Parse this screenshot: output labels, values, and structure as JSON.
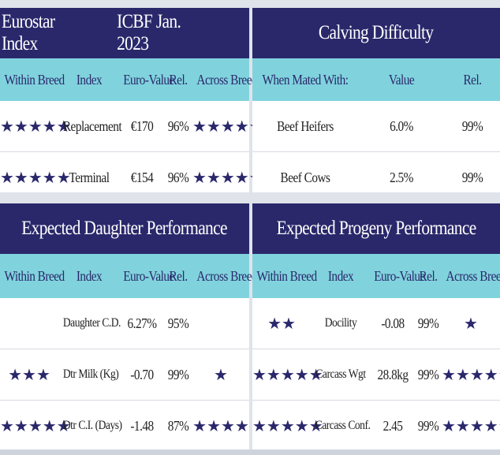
{
  "eurostar": {
    "title": "Eurostar Index",
    "subtitle": "ICBF Jan. 2023",
    "headers": [
      "Within Breed",
      "Index",
      "Euro-Value",
      "Rel.",
      "Across Breed"
    ],
    "rows": [
      {
        "within": "★★★★★",
        "index": "Replacement",
        "value": "€170",
        "rel": "96%",
        "across": "★★★★★"
      },
      {
        "within": "★★★★★",
        "index": "Terminal",
        "value": "€154",
        "rel": "96%",
        "across": "★★★★★"
      }
    ]
  },
  "calving": {
    "title": "Calving Difficulty",
    "headers": [
      "When Mated With:",
      "Value",
      "Rel."
    ],
    "rows": [
      {
        "mated": "Beef Heifers",
        "value": "6.0%",
        "rel": "99%"
      },
      {
        "mated": "Beef Cows",
        "value": "2.5%",
        "rel": "99%"
      }
    ]
  },
  "daughter": {
    "title": "Expected Daughter Performance",
    "headers": [
      "Within Breed",
      "Index",
      "Euro-Value",
      "Rel.",
      "Across Breed"
    ],
    "rows": [
      {
        "within": "",
        "index": "Daughter C.D.",
        "value": "6.27%",
        "rel": "95%",
        "across": ""
      },
      {
        "within": "★★★",
        "index": "Dtr Milk (Kg)",
        "value": "-0.70",
        "rel": "99%",
        "across": "★"
      },
      {
        "within": "★★★★★",
        "index": "Dtr C.I. (Days)",
        "value": "-1.48",
        "rel": "87%",
        "across": "★★★★"
      }
    ]
  },
  "progeny": {
    "title": "Expected Progeny Performance",
    "headers": [
      "Within Breed",
      "Index",
      "Euro-Value",
      "Rel.",
      "Across Breed"
    ],
    "rows": [
      {
        "within": "★★",
        "index": "Docility",
        "value": "-0.08",
        "rel": "99%",
        "across": "★"
      },
      {
        "within": "★★★★★",
        "index": "Carcass Wgt",
        "value": "28.8kg",
        "rel": "99%",
        "across": "★★★★★"
      },
      {
        "within": "★★★★★",
        "index": "Carcass Conf.",
        "value": "2.45",
        "rel": "99%",
        "across": "★★★★★"
      }
    ]
  },
  "colors": {
    "navy": "#2a286b",
    "teal": "#80d3dd"
  }
}
